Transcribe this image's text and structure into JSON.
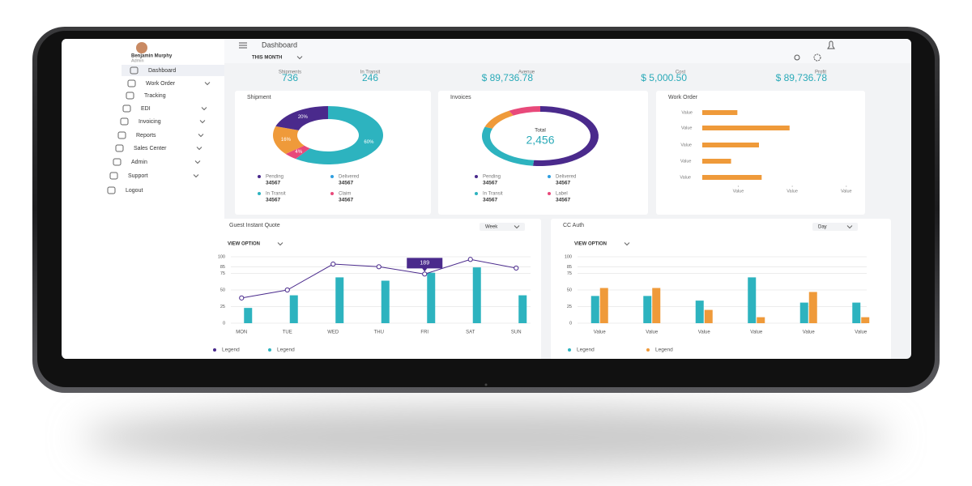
{
  "sidebar": {
    "user_name": "Benjamin Murphy",
    "user_role": "Admin",
    "menu": [
      "Dashboard",
      "Work Order",
      "Tracking",
      "EDI",
      "Invoicing",
      "Reports",
      "Sales Center",
      "Admin",
      "Support",
      "Logout"
    ]
  },
  "header": {
    "title": "Dashboard",
    "period": "THIS MONTH"
  },
  "stats": [
    {
      "label": "Shipments",
      "value": 736
    },
    {
      "label": "In Transit",
      "value": 246
    },
    {
      "label": "Avenue",
      "value": "$ 89,736.78"
    },
    {
      "label": "Cost",
      "value": "$ 5,000.50"
    },
    {
      "label": "Profit",
      "value": "$ 89,736.78"
    }
  ],
  "shipment": {
    "type": "donut",
    "title": "Shipment",
    "values": [
      60,
      4,
      16,
      20
    ],
    "value_labels": [
      "60%",
      "4%",
      "16%",
      "20%"
    ],
    "colors": [
      "#2db3bf",
      "#e8497a",
      "#ef9a3a",
      "#4a2a8c"
    ],
    "legend": [
      {
        "name": "Pending",
        "value": 34567,
        "color": "#4a2a8c"
      },
      {
        "name": "Delivered",
        "value": 34567,
        "color": "#2f9fe0"
      },
      {
        "name": "In Transit",
        "value": 34567,
        "color": "#2db3bf"
      },
      {
        "name": "Claim",
        "value": 34567,
        "color": "#e8497a"
      }
    ]
  },
  "invoices": {
    "type": "ring",
    "title": "Invoices",
    "total_label": "Total",
    "total": "2,456",
    "values": [
      52,
      28,
      11,
      9
    ],
    "colors": [
      "#4a2a8c",
      "#2db3bf",
      "#ef9a3a",
      "#e8497a"
    ],
    "legend": [
      {
        "name": "Pending",
        "value": 34567,
        "color": "#4a2a8c"
      },
      {
        "name": "Delivered",
        "value": 34567,
        "color": "#2f9fe0"
      },
      {
        "name": "In Transit",
        "value": 34567,
        "color": "#2db3bf"
      },
      {
        "name": "Label",
        "value": 34567,
        "color": "#e8497a"
      }
    ]
  },
  "work_order": {
    "type": "hbar",
    "title": "Work Order",
    "categories": [
      "Value",
      "Value",
      "Value",
      "Value",
      "Value"
    ],
    "values": [
      39,
      97,
      63,
      32,
      66
    ],
    "color": "#ef9a3a",
    "xlim": [
      0,
      180
    ],
    "xticks": [
      {
        "value": 40,
        "label": "Value"
      },
      {
        "value": 100,
        "label": "Value"
      },
      {
        "value": 160,
        "label": "Value"
      }
    ]
  },
  "guest_quote": {
    "type": "combo",
    "title": "Guest Instant Quote",
    "dropdown": "Week",
    "view_option": "VIEW OPTION",
    "categories": [
      "MON",
      "TUE",
      "WED",
      "THU",
      "FRI",
      "SAT",
      "SUN"
    ],
    "ylim": [
      0,
      100
    ],
    "yticks": [
      0,
      25,
      50,
      75,
      85,
      100
    ],
    "grid": true,
    "series": [
      {
        "name": "Legend",
        "type": "line",
        "color": "#4a2a8c",
        "values": [
          38,
          50,
          89,
          85,
          74,
          96,
          83
        ]
      },
      {
        "name": "Legend",
        "type": "bar",
        "color": "#2db3bf",
        "values": [
          23,
          42,
          69,
          64,
          76,
          84,
          42
        ]
      }
    ],
    "annotation": "189"
  },
  "cc_auth": {
    "type": "grouped-bar",
    "title": "CC Auth",
    "dropdown": "Day",
    "view_option": "VIEW OPTION",
    "categories": [
      "Value",
      "Value",
      "Value",
      "Value",
      "Value",
      "Value"
    ],
    "ylim": [
      0,
      100
    ],
    "yticks": [
      0,
      25,
      50,
      75,
      85,
      100
    ],
    "grid": true,
    "series": [
      {
        "name": "Legend",
        "color": "#2db3bf",
        "values": [
          41,
          41,
          34,
          69,
          31,
          31
        ]
      },
      {
        "name": "Legend",
        "color": "#ef9a3a",
        "values": [
          53,
          53,
          20,
          9,
          47,
          9
        ]
      }
    ]
  }
}
